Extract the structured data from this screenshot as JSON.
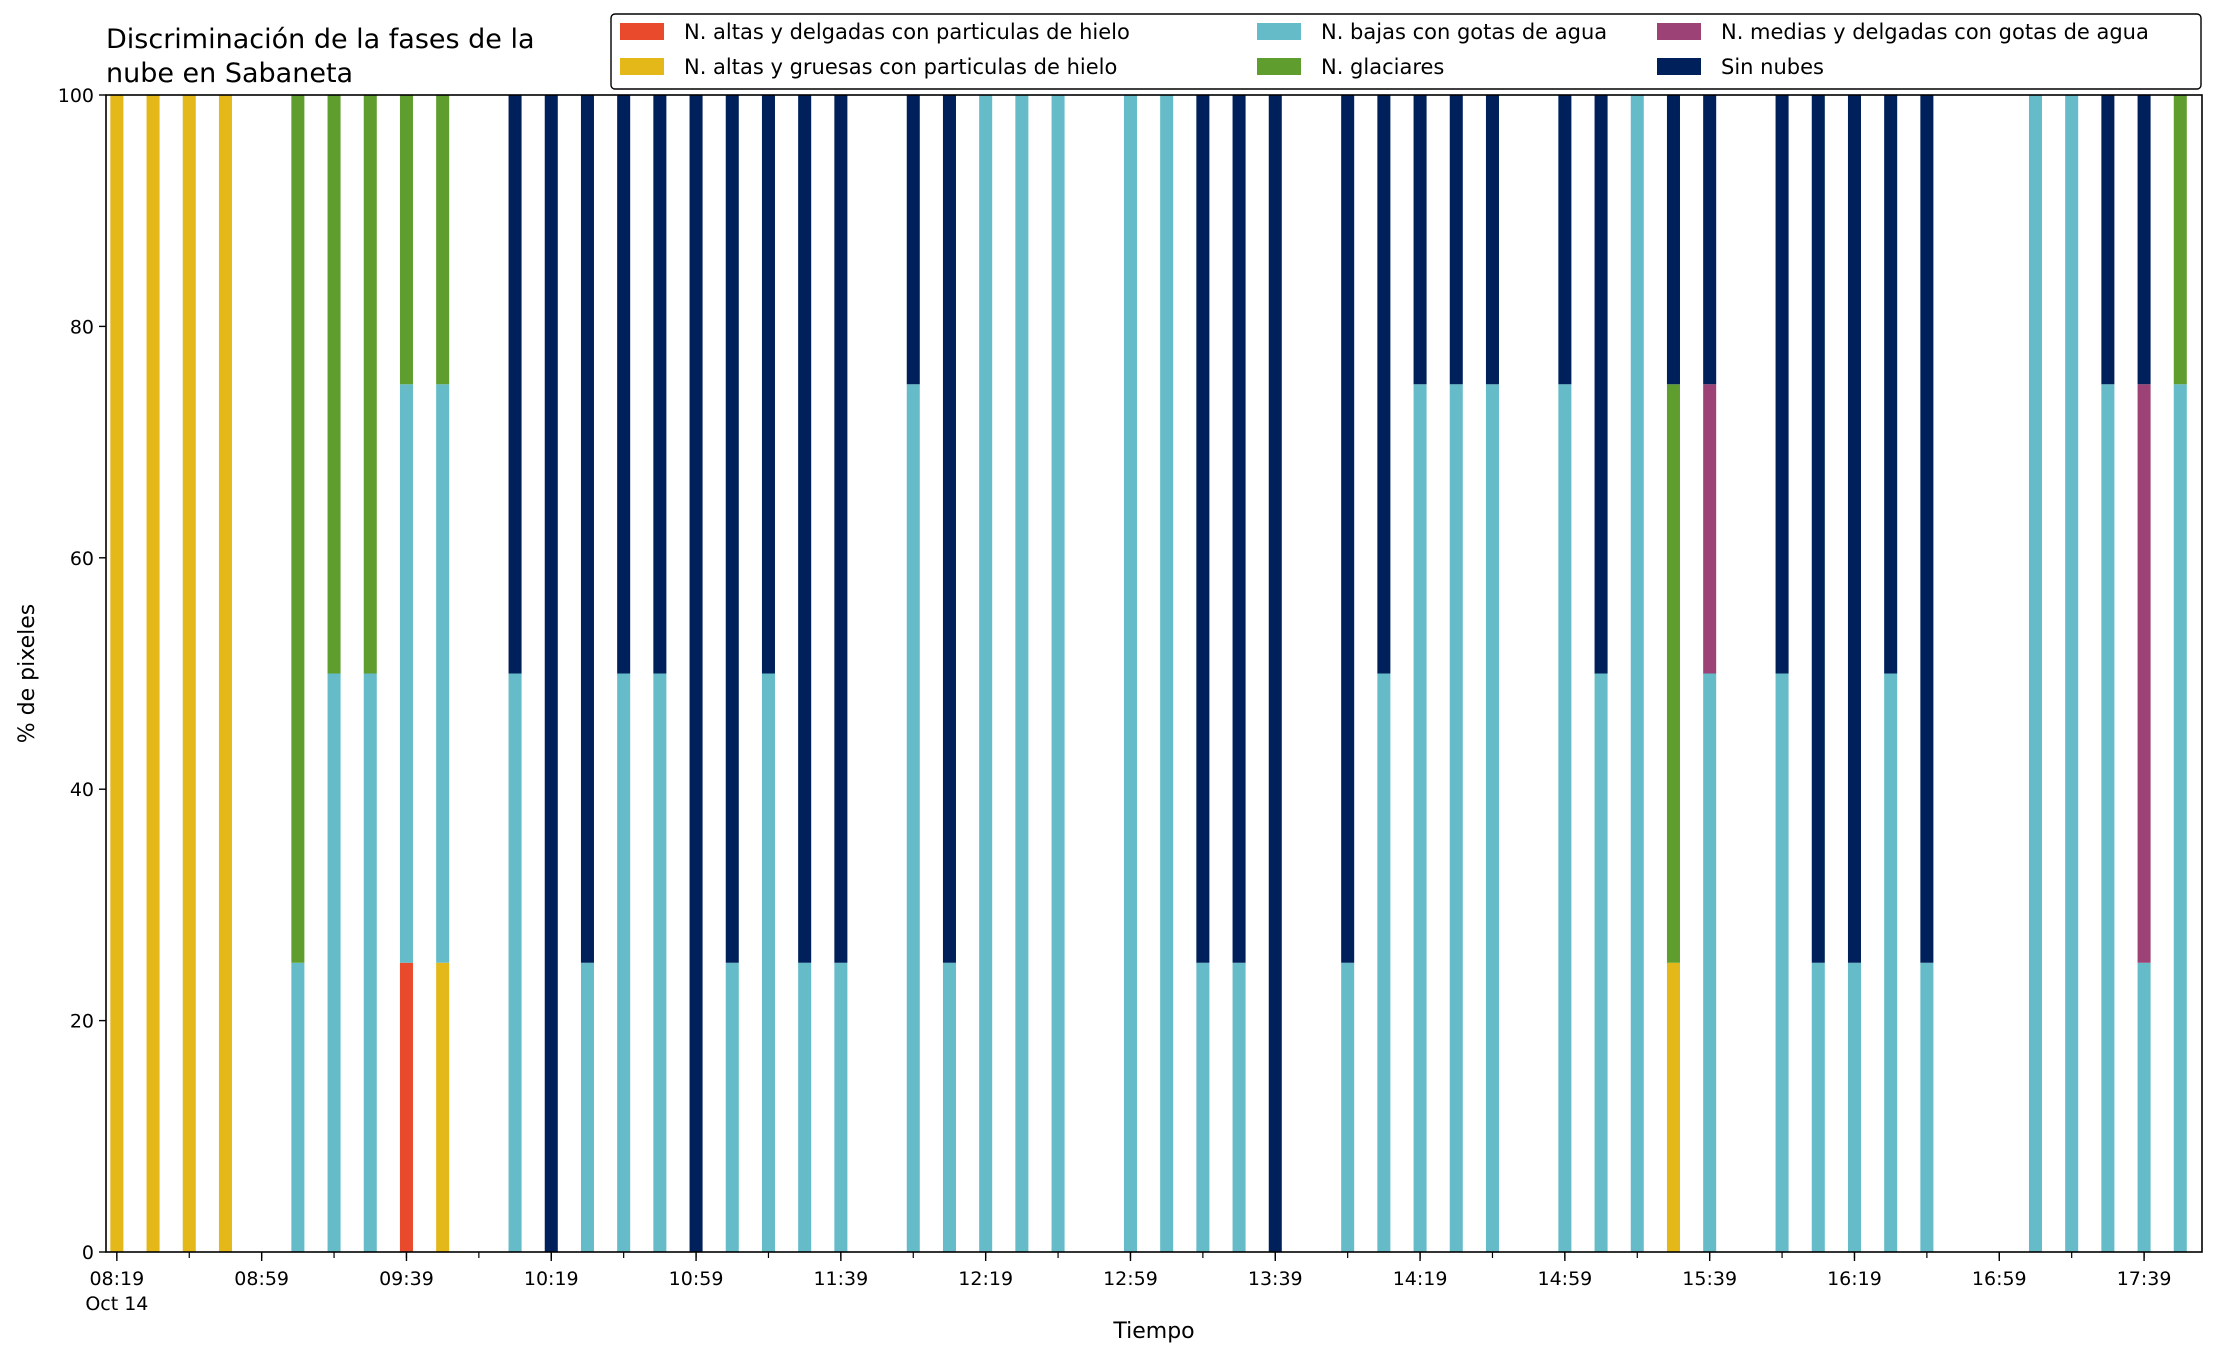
{
  "chart_data": {
    "type": "bar",
    "stacked": true,
    "title": "Discriminación de la fases de la nube en Sabaneta",
    "title_lines": [
      "Discriminación de la fases de la",
      "nube en Sabaneta"
    ],
    "xlabel": "Tiempo",
    "ylabel": "% de pixeles",
    "ylim": [
      0,
      100
    ],
    "yticks": [
      0,
      20,
      40,
      60,
      80,
      100
    ],
    "x_range_minutes": [
      496,
      1075
    ],
    "bar_width_minutes": 5,
    "xtick_labels": [
      "08:19",
      "08:59",
      "09:39",
      "10:19",
      "10:59",
      "11:39",
      "12:19",
      "12:59",
      "13:39",
      "14:19",
      "14:59",
      "15:39",
      "16:19",
      "16:59",
      "17:39"
    ],
    "xtick_date_label": "Oct 14",
    "legend_placement": "top-right",
    "legend_order": [
      "altas_delgadas",
      "altas_gruesas",
      "bajas",
      "glaciares",
      "medias_delgadas",
      "sin_nubes"
    ],
    "stack_order": [
      "altas_delgadas",
      "altas_gruesas",
      "bajas",
      "glaciares",
      "medias_delgadas",
      "sin_nubes"
    ],
    "series": {
      "altas_delgadas": {
        "name": "N. altas y delgadas con particulas de hielo",
        "color": "#e84a2b"
      },
      "altas_gruesas": {
        "name": "N. altas y gruesas con particulas de hielo",
        "color": "#e3b818"
      },
      "bajas": {
        "name": "N. bajas con gotas de agua",
        "color": "#65bcc8"
      },
      "glaciares": {
        "name": "N. glaciares",
        "color": "#5f9e2e"
      },
      "medias_delgadas": {
        "name": "N. medias y delgadas con gotas de agua",
        "color": "#9c4277"
      },
      "sin_nubes": {
        "name": "Sin nubes",
        "color": "#00205b"
      }
    },
    "bars": [
      {
        "time": "08:19",
        "altas_gruesas": 100
      },
      {
        "time": "08:29",
        "altas_gruesas": 100
      },
      {
        "time": "08:39",
        "altas_gruesas": 100
      },
      {
        "time": "08:49",
        "altas_gruesas": 100
      },
      {
        "time": "09:09",
        "bajas": 25,
        "glaciares": 75
      },
      {
        "time": "09:19",
        "bajas": 50,
        "glaciares": 50
      },
      {
        "time": "09:29",
        "bajas": 50,
        "glaciares": 50
      },
      {
        "time": "09:39",
        "altas_delgadas": 25,
        "bajas": 50,
        "glaciares": 25
      },
      {
        "time": "09:49",
        "altas_gruesas": 25,
        "bajas": 50,
        "glaciares": 25
      },
      {
        "time": "10:09",
        "bajas": 50,
        "sin_nubes": 50
      },
      {
        "time": "10:19",
        "sin_nubes": 100
      },
      {
        "time": "10:29",
        "bajas": 25,
        "sin_nubes": 75
      },
      {
        "time": "10:39",
        "bajas": 50,
        "sin_nubes": 50
      },
      {
        "time": "10:49",
        "bajas": 50,
        "sin_nubes": 50
      },
      {
        "time": "10:59",
        "sin_nubes": 100
      },
      {
        "time": "11:09",
        "bajas": 25,
        "sin_nubes": 75
      },
      {
        "time": "11:19",
        "bajas": 50,
        "sin_nubes": 50
      },
      {
        "time": "11:29",
        "bajas": 25,
        "sin_nubes": 75
      },
      {
        "time": "11:39",
        "bajas": 25,
        "sin_nubes": 75
      },
      {
        "time": "11:59",
        "bajas": 75,
        "sin_nubes": 25
      },
      {
        "time": "12:09",
        "bajas": 25,
        "sin_nubes": 75
      },
      {
        "time": "12:19",
        "bajas": 100
      },
      {
        "time": "12:29",
        "bajas": 100
      },
      {
        "time": "12:39",
        "bajas": 100
      },
      {
        "time": "12:59",
        "bajas": 100
      },
      {
        "time": "13:09",
        "bajas": 100
      },
      {
        "time": "13:19",
        "bajas": 25,
        "sin_nubes": 75
      },
      {
        "time": "13:29",
        "bajas": 25,
        "sin_nubes": 75
      },
      {
        "time": "13:39",
        "sin_nubes": 100
      },
      {
        "time": "13:59",
        "bajas": 25,
        "sin_nubes": 75
      },
      {
        "time": "14:09",
        "bajas": 50,
        "sin_nubes": 50
      },
      {
        "time": "14:19",
        "bajas": 75,
        "sin_nubes": 25
      },
      {
        "time": "14:29",
        "bajas": 75,
        "sin_nubes": 25
      },
      {
        "time": "14:39",
        "bajas": 75,
        "sin_nubes": 25
      },
      {
        "time": "14:59",
        "bajas": 75,
        "sin_nubes": 25
      },
      {
        "time": "15:09",
        "bajas": 50,
        "sin_nubes": 50
      },
      {
        "time": "15:19",
        "bajas": 100
      },
      {
        "time": "15:29",
        "altas_gruesas": 25,
        "glaciares": 50,
        "sin_nubes": 25
      },
      {
        "time": "15:39",
        "bajas": 50,
        "medias_delgadas": 25,
        "sin_nubes": 25
      },
      {
        "time": "15:59",
        "bajas": 50,
        "sin_nubes": 50
      },
      {
        "time": "16:09",
        "bajas": 25,
        "sin_nubes": 75
      },
      {
        "time": "16:19",
        "bajas": 25,
        "sin_nubes": 75
      },
      {
        "time": "16:29",
        "bajas": 50,
        "sin_nubes": 50
      },
      {
        "time": "16:39",
        "bajas": 25,
        "sin_nubes": 75
      },
      {
        "time": "17:09",
        "bajas": 100
      },
      {
        "time": "17:19",
        "bajas": 100
      },
      {
        "time": "17:29",
        "bajas": 75,
        "sin_nubes": 25
      },
      {
        "time": "17:39",
        "bajas": 25,
        "medias_delgadas": 50,
        "sin_nubes": 25
      },
      {
        "time": "17:49",
        "bajas": 75,
        "glaciares": 25
      }
    ]
  }
}
